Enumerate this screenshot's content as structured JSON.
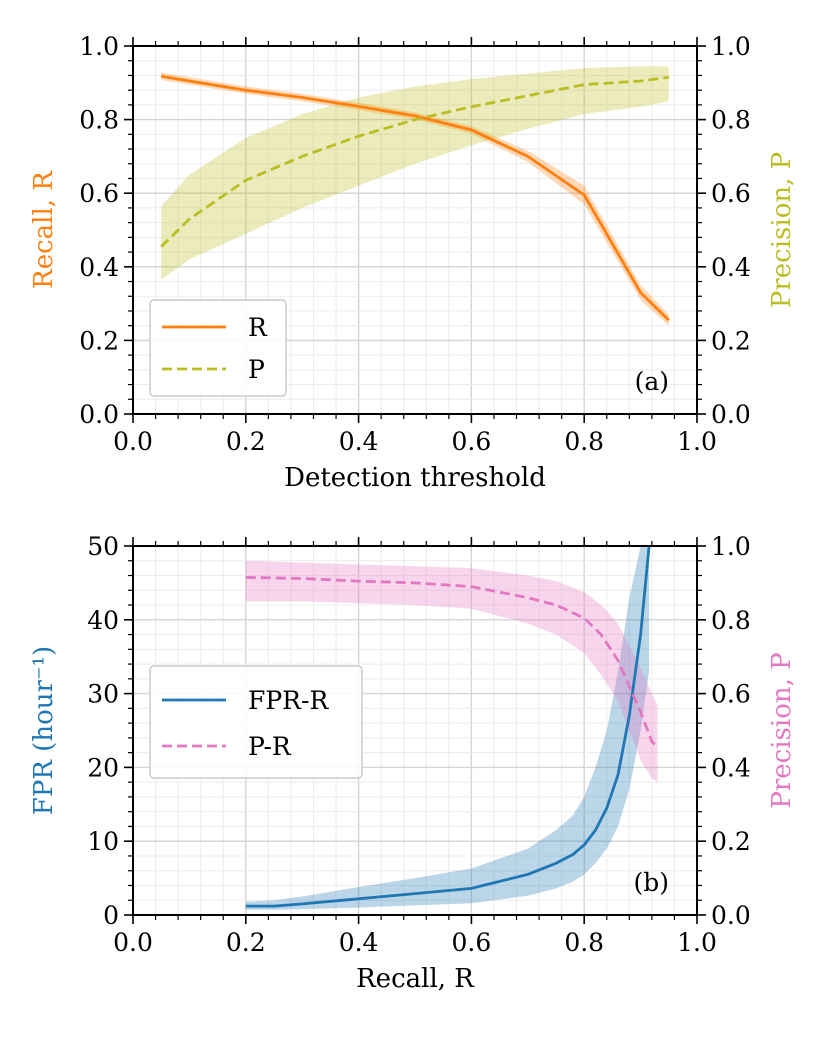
{
  "chart_data": [
    {
      "type": "line",
      "panel_label": "(a)",
      "xlabel": "Detection threshold",
      "ylabel_left": "Recall, R",
      "ylabel_right": "Precision, P",
      "xlim": [
        0.0,
        1.0
      ],
      "ylim_left": [
        0.0,
        1.0
      ],
      "ylim_right": [
        0.0,
        1.0
      ],
      "xticks": [
        "0.0",
        "0.2",
        "0.4",
        "0.6",
        "0.8",
        "1.0"
      ],
      "yticks_left": [
        "0.0",
        "0.2",
        "0.4",
        "0.6",
        "0.8",
        "1.0"
      ],
      "yticks_right": [
        "0.0",
        "0.2",
        "0.4",
        "0.6",
        "0.8",
        "1.0"
      ],
      "grid": true,
      "legend_position": "bottom-left",
      "series": [
        {
          "name": "R",
          "axis": "left",
          "style": "solid",
          "color": "#ff7f0e",
          "x": [
            0.05,
            0.1,
            0.2,
            0.3,
            0.4,
            0.5,
            0.6,
            0.7,
            0.8,
            0.9,
            0.95
          ],
          "y": [
            0.918,
            0.905,
            0.88,
            0.86,
            0.836,
            0.81,
            0.772,
            0.7,
            0.595,
            0.33,
            0.255
          ],
          "y_lower": [
            0.908,
            0.895,
            0.87,
            0.85,
            0.826,
            0.8,
            0.762,
            0.685,
            0.57,
            0.31,
            0.24
          ],
          "y_upper": [
            0.928,
            0.915,
            0.89,
            0.87,
            0.846,
            0.82,
            0.782,
            0.715,
            0.62,
            0.35,
            0.27
          ]
        },
        {
          "name": "P",
          "axis": "right",
          "style": "dashed",
          "color": "#bcbd22",
          "x": [
            0.05,
            0.1,
            0.2,
            0.3,
            0.4,
            0.5,
            0.6,
            0.7,
            0.8,
            0.9,
            0.95
          ],
          "y": [
            0.455,
            0.53,
            0.635,
            0.7,
            0.755,
            0.8,
            0.835,
            0.865,
            0.895,
            0.905,
            0.915
          ],
          "y_lower": [
            0.365,
            0.42,
            0.49,
            0.56,
            0.62,
            0.68,
            0.73,
            0.775,
            0.815,
            0.835,
            0.85
          ],
          "y_upper": [
            0.565,
            0.65,
            0.75,
            0.815,
            0.86,
            0.89,
            0.91,
            0.925,
            0.94,
            0.945,
            0.945
          ]
        }
      ]
    },
    {
      "type": "line",
      "panel_label": "(b)",
      "xlabel": "Recall, R",
      "ylabel_left": "FPR (hour⁻¹)",
      "ylabel_right": "Precision, P",
      "xlim": [
        0.0,
        1.0
      ],
      "ylim_left": [
        0,
        50
      ],
      "ylim_right": [
        0.0,
        1.0
      ],
      "xticks": [
        "0.0",
        "0.2",
        "0.4",
        "0.6",
        "0.8",
        "1.0"
      ],
      "yticks_left": [
        "0",
        "10",
        "20",
        "30",
        "40",
        "50"
      ],
      "yticks_right": [
        "0.0",
        "0.2",
        "0.4",
        "0.6",
        "0.8",
        "1.0"
      ],
      "grid": true,
      "legend_position": "center-left",
      "series": [
        {
          "name": "FPR-R",
          "axis": "left",
          "style": "solid",
          "color": "#1f77b4",
          "x": [
            0.2,
            0.25,
            0.3,
            0.4,
            0.5,
            0.6,
            0.7,
            0.75,
            0.78,
            0.8,
            0.82,
            0.84,
            0.86,
            0.88,
            0.9,
            0.915
          ],
          "y": [
            1.2,
            1.2,
            1.5,
            2.2,
            2.9,
            3.6,
            5.5,
            7.0,
            8.2,
            9.5,
            11.5,
            14.5,
            19.0,
            27.0,
            38.0,
            50.0
          ],
          "y_lower": [
            0.7,
            0.7,
            0.8,
            1.0,
            1.3,
            1.6,
            2.6,
            3.6,
            4.5,
            5.5,
            7.0,
            9.0,
            12.0,
            17.0,
            25.0,
            33.0
          ],
          "y_upper": [
            1.8,
            2.0,
            2.5,
            3.8,
            5.0,
            6.3,
            9.0,
            11.5,
            13.5,
            16.0,
            20.0,
            25.0,
            33.0,
            43.0,
            50.0,
            50.0
          ]
        },
        {
          "name": "P-R",
          "axis": "right",
          "style": "dashed",
          "color": "#e377c2",
          "x": [
            0.2,
            0.3,
            0.4,
            0.5,
            0.6,
            0.7,
            0.75,
            0.8,
            0.83,
            0.86,
            0.88,
            0.9,
            0.92,
            0.93
          ],
          "y": [
            0.915,
            0.912,
            0.905,
            0.9,
            0.89,
            0.86,
            0.84,
            0.805,
            0.76,
            0.69,
            0.62,
            0.55,
            0.47,
            0.455
          ],
          "y_lower": [
            0.85,
            0.85,
            0.845,
            0.84,
            0.83,
            0.79,
            0.76,
            0.71,
            0.65,
            0.58,
            0.5,
            0.42,
            0.37,
            0.36
          ],
          "y_upper": [
            0.96,
            0.955,
            0.95,
            0.945,
            0.94,
            0.92,
            0.905,
            0.875,
            0.84,
            0.79,
            0.73,
            0.67,
            0.6,
            0.57
          ]
        }
      ]
    }
  ]
}
